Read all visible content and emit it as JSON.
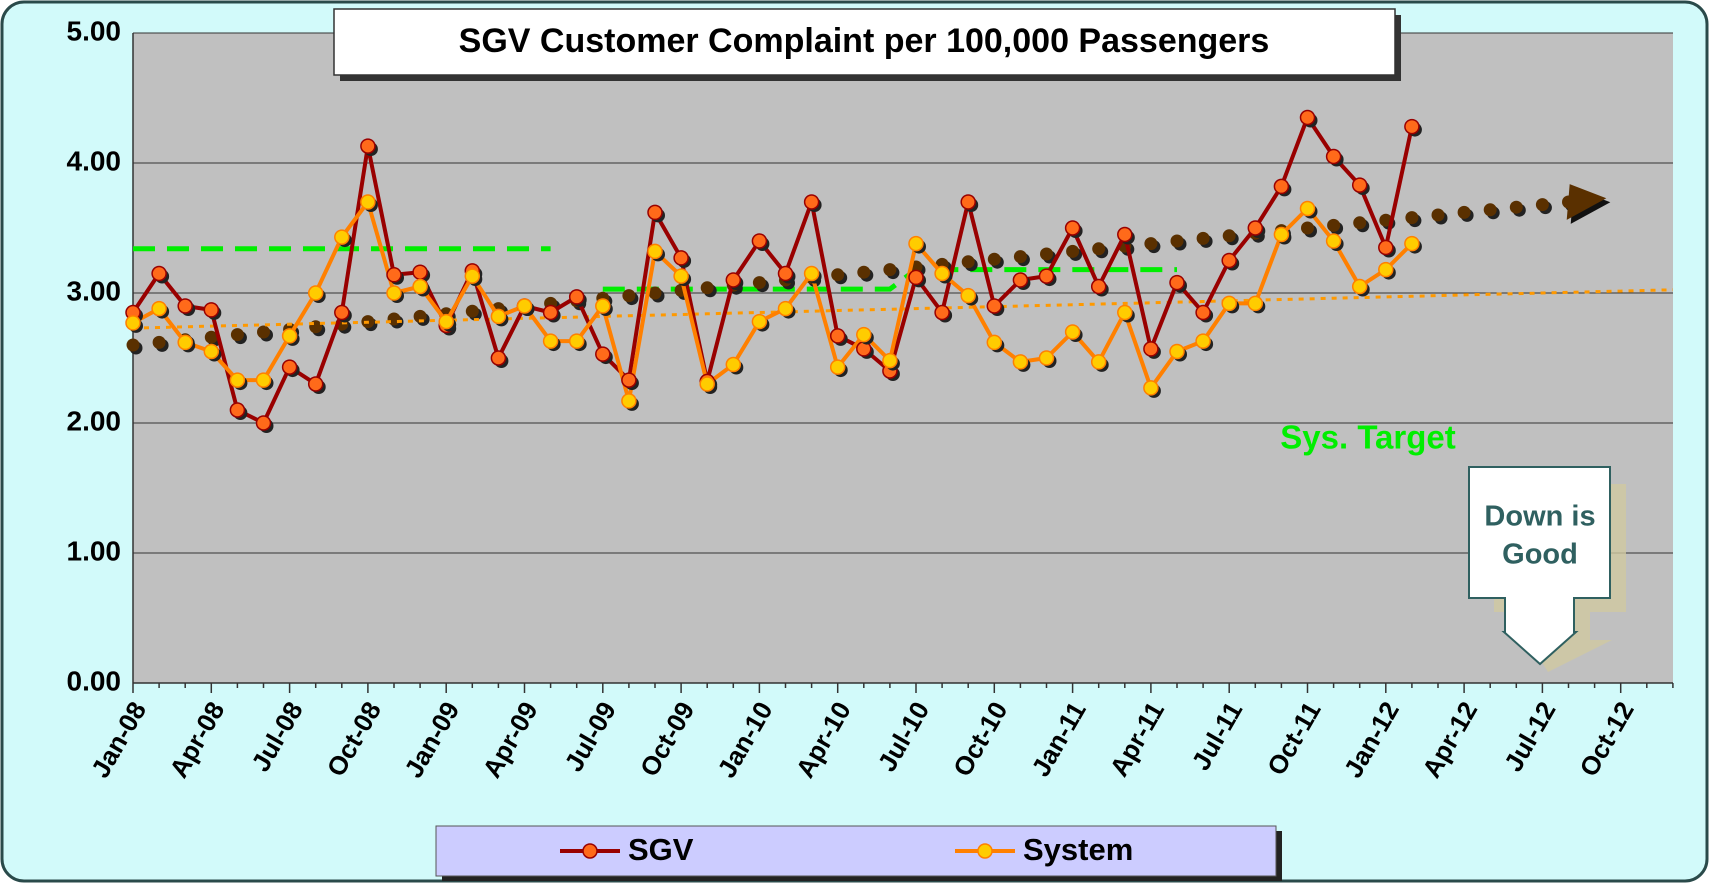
{
  "chart_data": {
    "type": "line",
    "title": "SGV Customer Complaint per 100,000 Passengers",
    "categories": [
      "Jan-08",
      null,
      null,
      "Apr-08",
      null,
      null,
      "Jul-08",
      null,
      null,
      "Oct-08",
      null,
      null,
      "Jan-09",
      null,
      null,
      "Apr-09",
      null,
      null,
      "Jul-09",
      null,
      null,
      "Oct-09",
      null,
      null,
      "Jan-10",
      null,
      null,
      "Apr-10",
      null,
      null,
      "Jul-10",
      null,
      null,
      "Oct-10",
      null,
      null,
      "Jan-11",
      null,
      null,
      "Apr-11",
      null,
      null,
      "Jul-11",
      null,
      null,
      "Oct-11",
      null,
      null,
      "Jan-12",
      null,
      null,
      "Apr-12",
      null,
      null,
      "Jul-12",
      null,
      null,
      "Oct-12",
      null,
      null
    ],
    "series": [
      {
        "name": "SGV",
        "color": "#990000",
        "marker_color": "#ff6a1a",
        "values": [
          2.85,
          3.15,
          2.9,
          2.87,
          2.1,
          2.0,
          2.43,
          2.3,
          2.85,
          4.13,
          3.14,
          3.16,
          2.75,
          3.17,
          2.5,
          2.9,
          2.85,
          2.97,
          2.53,
          2.33,
          3.62,
          3.27,
          2.32,
          3.1,
          3.4,
          3.15,
          3.7,
          2.67,
          2.57,
          2.4,
          3.12,
          2.85,
          3.7,
          2.9,
          3.1,
          3.13,
          3.5,
          3.05,
          3.45,
          2.57,
          3.08,
          2.85,
          3.25,
          3.5,
          3.82,
          4.35,
          4.05,
          3.83,
          3.35,
          4.28,
          null,
          null,
          null,
          null,
          null,
          null,
          null,
          null,
          null,
          null
        ]
      },
      {
        "name": "System",
        "color": "#ff8000",
        "marker_color": "#ffcc00",
        "values": [
          2.77,
          2.88,
          2.62,
          2.55,
          2.33,
          2.33,
          2.67,
          3.0,
          3.43,
          3.7,
          3.0,
          3.05,
          2.78,
          3.13,
          2.82,
          2.9,
          2.63,
          2.63,
          2.9,
          2.17,
          3.32,
          3.13,
          2.3,
          2.45,
          2.78,
          2.88,
          3.15,
          2.43,
          2.68,
          2.48,
          3.38,
          3.15,
          2.98,
          2.62,
          2.47,
          2.5,
          2.7,
          2.47,
          2.85,
          2.27,
          2.55,
          2.63,
          2.92,
          2.92,
          3.45,
          3.65,
          3.4,
          3.05,
          3.18,
          3.38,
          null,
          null,
          null,
          null,
          null,
          null,
          null,
          null,
          null,
          null
        ]
      }
    ],
    "trends": [
      {
        "color": "#5a3000",
        "style": "dots",
        "values": [
          2.6,
          2.62,
          2.64,
          2.66,
          2.68,
          2.7,
          2.72,
          2.74,
          2.76,
          2.78,
          2.8,
          2.82,
          2.84,
          2.86,
          2.88,
          2.9,
          2.92,
          2.94,
          2.96,
          2.98,
          3.0,
          3.02,
          3.04,
          3.06,
          3.08,
          3.1,
          3.12,
          3.14,
          3.16,
          3.18,
          3.2,
          3.22,
          3.24,
          3.26,
          3.28,
          3.3,
          3.32,
          3.34,
          3.36,
          3.38,
          3.4,
          3.42,
          3.44,
          3.46,
          3.48,
          3.5,
          3.52,
          3.54,
          3.56,
          3.58,
          3.6,
          3.62,
          3.64,
          3.66,
          3.68,
          3.7,
          null,
          null,
          null,
          null
        ]
      },
      {
        "color": "#ff9900",
        "style": "dotted",
        "values": [
          2.73,
          2.735,
          2.74,
          2.745,
          2.75,
          2.755,
          2.76,
          2.765,
          2.77,
          2.775,
          2.78,
          2.785,
          2.79,
          2.795,
          2.8,
          2.805,
          2.81,
          2.815,
          2.82,
          2.825,
          2.83,
          2.835,
          2.84,
          2.845,
          2.85,
          2.855,
          2.86,
          2.865,
          2.87,
          2.875,
          2.88,
          2.885,
          2.89,
          2.895,
          2.9,
          2.905,
          2.91,
          2.915,
          2.92,
          2.925,
          2.93,
          2.935,
          2.94,
          2.945,
          2.95,
          2.955,
          2.96,
          2.965,
          2.97,
          2.975,
          2.98,
          2.985,
          2.99,
          2.995,
          3.0,
          3.005,
          3.01,
          3.015,
          3.02,
          3.025
        ]
      }
    ],
    "target": {
      "label": "Sys. Target",
      "color": "#00ee00",
      "values": [
        3.34,
        3.34,
        3.34,
        3.34,
        3.34,
        3.34,
        3.34,
        3.34,
        3.34,
        3.34,
        3.34,
        3.34,
        3.34,
        3.34,
        3.34,
        3.34,
        3.34,
        null,
        3.03,
        3.03,
        3.03,
        3.03,
        3.03,
        3.03,
        3.03,
        3.03,
        3.03,
        3.03,
        3.03,
        3.03,
        3.18,
        3.18,
        3.18,
        3.18,
        3.18,
        3.18,
        3.18,
        3.18,
        3.18,
        3.18,
        3.18,
        null,
        null,
        null,
        null,
        null,
        null,
        null,
        null,
        null,
        null,
        null,
        null,
        null,
        null,
        null,
        null,
        null,
        null,
        null
      ]
    },
    "annotation": [
      "Down is",
      "Good"
    ],
    "ylim": [
      0,
      5
    ],
    "yticks": [
      {
        "value": 0,
        "label": "0.00"
      },
      {
        "value": 1,
        "label": "1.00"
      },
      {
        "value": 2,
        "label": "2.00"
      },
      {
        "value": 3,
        "label": "3.00"
      },
      {
        "value": 4,
        "label": "4.00"
      },
      {
        "value": 5,
        "label": "5.00"
      }
    ],
    "grid": true,
    "legend": "bottom"
  }
}
